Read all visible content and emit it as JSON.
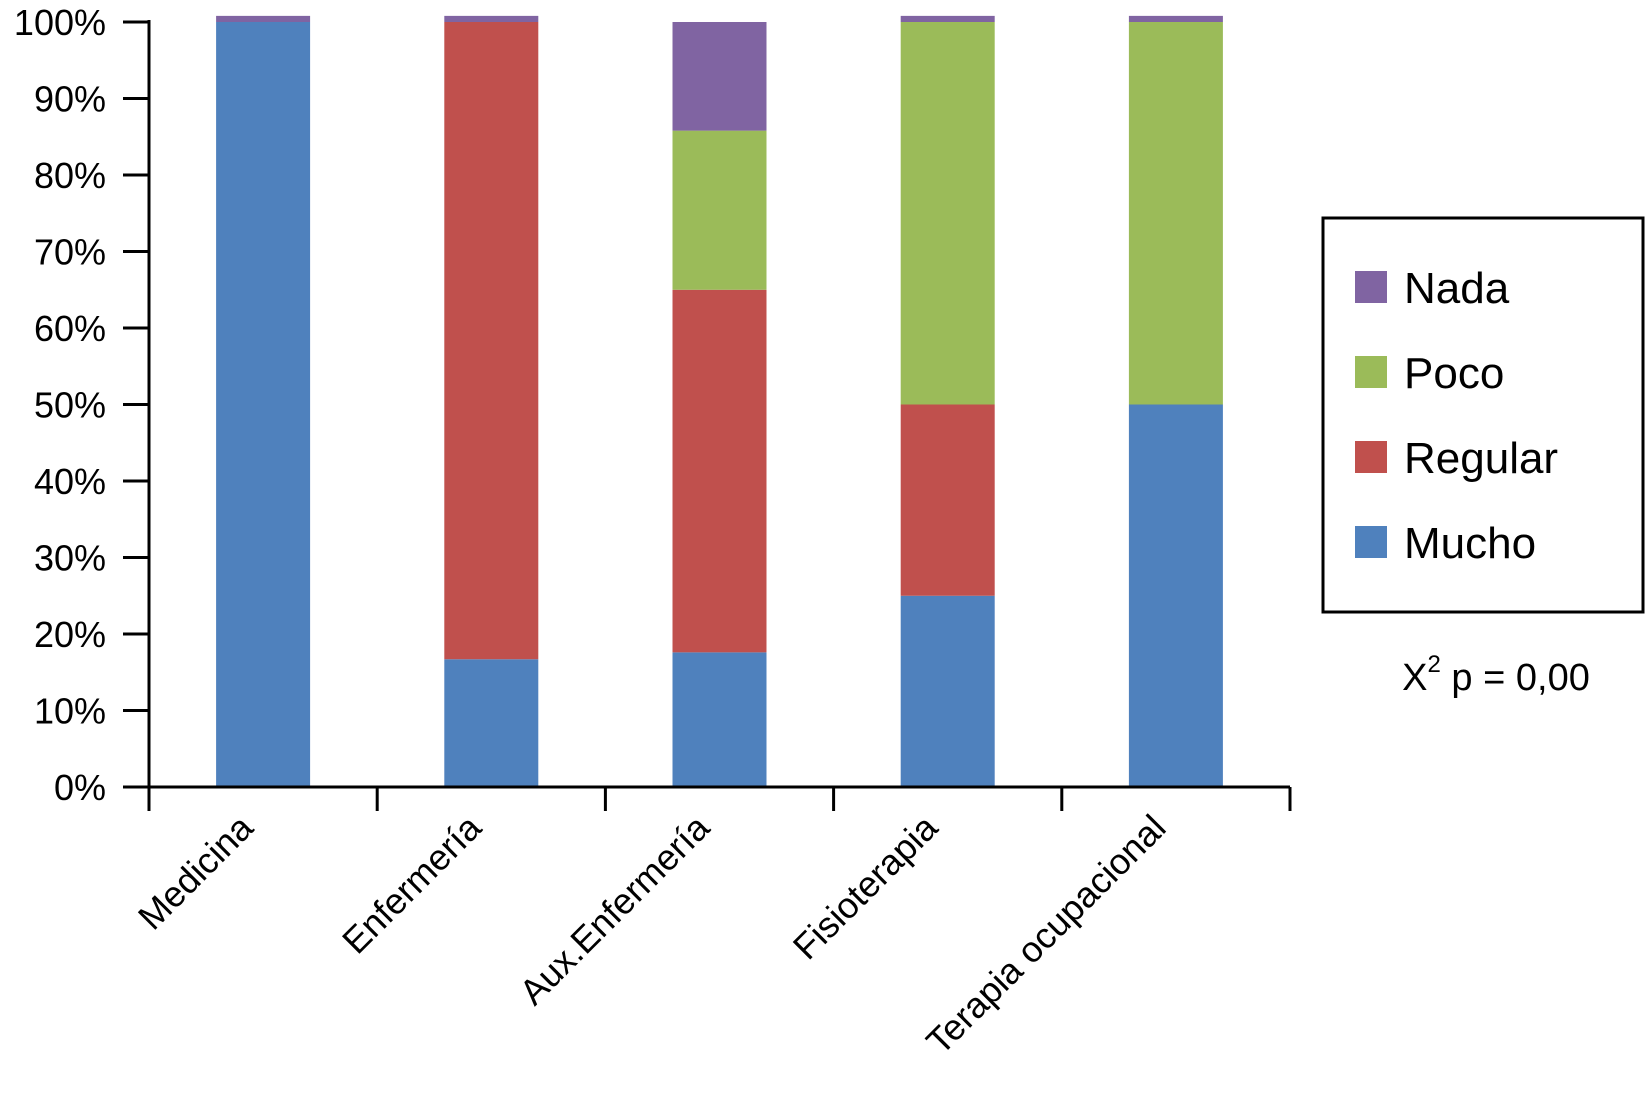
{
  "chart_data": {
    "type": "bar",
    "stacked": true,
    "title": "",
    "xlabel": "",
    "ylabel": "",
    "ylim": [
      0,
      100
    ],
    "yticks": [
      "0%",
      "10%",
      "20%",
      "30%",
      "40%",
      "50%",
      "60%",
      "70%",
      "80%",
      "90%",
      "100%"
    ],
    "categories": [
      "Medicina",
      "Enfermería",
      "Aux.Enfermería",
      "Fisioterapia",
      "Terapia ocupacional"
    ],
    "series": [
      {
        "name": "Mucho",
        "color": "#4f81bd",
        "values": [
          100,
          16.7,
          17.6,
          25,
          50
        ]
      },
      {
        "name": "Regular",
        "color": "#c0504d",
        "values": [
          0,
          83.3,
          47.4,
          25,
          0
        ]
      },
      {
        "name": "Poco",
        "color": "#9bbb59",
        "values": [
          0,
          0,
          20.8,
          50,
          50
        ]
      },
      {
        "name": "Nada",
        "color": "#8064a2",
        "values": [
          0.8,
          0.8,
          14.2,
          0.8,
          0.8
        ]
      }
    ],
    "legend": {
      "placement": "right",
      "order": [
        "Nada",
        "Poco",
        "Regular",
        "Mucho"
      ]
    },
    "grid": false,
    "annotation": {
      "prefix": "X",
      "superscript": "2",
      "text": " p = 0,00"
    }
  }
}
